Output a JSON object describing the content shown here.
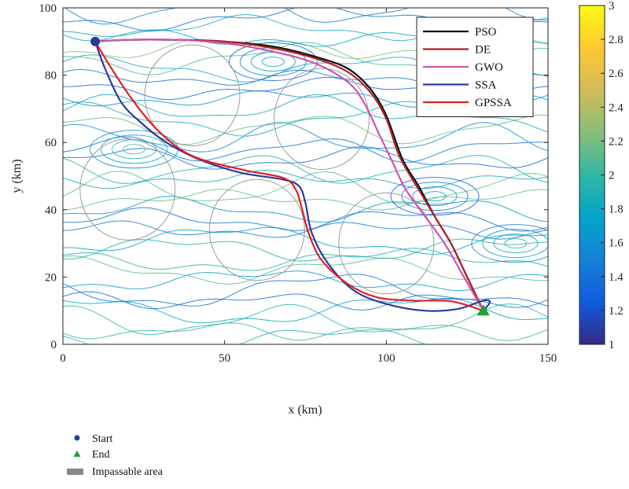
{
  "chart_data": {
    "type": "line",
    "title": "",
    "xlabel": "x (km)",
    "ylabel": "y (km)",
    "xlim": [
      0,
      150
    ],
    "ylim": [
      0,
      100
    ],
    "x_ticks": [
      "0",
      "50",
      "100",
      "150"
    ],
    "y_ticks": [
      "0",
      "20",
      "40",
      "60",
      "80",
      "100"
    ],
    "grid": false,
    "legend_position": "top-right",
    "series": [
      {
        "name": "PSO",
        "color": "#111111",
        "x": [
          10,
          20,
          35,
          50,
          65,
          78,
          88,
          95,
          100,
          105,
          110,
          115,
          120,
          125,
          130
        ],
        "y": [
          90,
          90.5,
          90.5,
          90,
          88.5,
          85.5,
          82,
          76,
          68,
          55,
          47,
          38,
          30,
          20,
          10
        ]
      },
      {
        "name": "DE",
        "color": "#b22222",
        "x": [
          10,
          20,
          35,
          50,
          65,
          78,
          88,
          95,
          100,
          104,
          110,
          115,
          120,
          125,
          130
        ],
        "y": [
          90,
          90.5,
          90.5,
          90,
          88,
          85,
          81,
          75,
          67,
          56,
          46,
          38,
          30,
          20,
          10
        ]
      },
      {
        "name": "GWO",
        "color": "#cc55b0",
        "x": [
          10,
          20,
          35,
          50,
          65,
          78,
          88,
          93,
          98,
          102,
          106,
          112,
          118,
          124,
          130
        ],
        "y": [
          90,
          90.5,
          90.5,
          89.5,
          87,
          83.5,
          78,
          72,
          62,
          54,
          46,
          38,
          30,
          20,
          10
        ]
      },
      {
        "name": "SSA",
        "color": "#2e3a9c",
        "x": [
          10,
          13,
          18,
          24,
          32,
          42,
          55,
          68,
          73,
          75,
          77,
          82,
          90,
          100,
          112,
          122,
          130,
          132,
          130
        ],
        "y": [
          90,
          82,
          72,
          66,
          60,
          55,
          51,
          49,
          47,
          42,
          33,
          24,
          16,
          12,
          10,
          10.5,
          13,
          12.5,
          10
        ]
      },
      {
        "name": "GPSSA",
        "color": "#e02020",
        "x": [
          10,
          15,
          22,
          30,
          40,
          55,
          68,
          72,
          74,
          76,
          80,
          88,
          97,
          108,
          120,
          130
        ],
        "y": [
          90,
          82,
          72,
          63,
          56,
          52,
          49.5,
          46,
          40,
          33,
          25,
          18,
          14,
          13,
          12.8,
          10
        ]
      }
    ],
    "start": {
      "label": "Start",
      "x": 10,
      "y": 90,
      "color": "#1f3f9a"
    },
    "end": {
      "label": "End",
      "x": 130,
      "y": 10,
      "color": "#1fa032"
    },
    "impassable_area_label": "Impassable area",
    "impassable_color": "#888888",
    "impassable_areas": [
      {
        "cx": 40,
        "cy": 74,
        "r": 15
      },
      {
        "cx": 80,
        "cy": 67,
        "r": 15
      },
      {
        "cx": 20,
        "cy": 46,
        "r": 15
      },
      {
        "cx": 60,
        "cy": 34,
        "r": 15
      },
      {
        "cx": 100,
        "cy": 30,
        "r": 15
      }
    ],
    "colorbar": {
      "min": 1,
      "max": 3,
      "ticks": [
        "1",
        "1.2",
        "1.4",
        "1.6",
        "1.8",
        "2",
        "2.2",
        "2.4",
        "2.6",
        "2.8",
        "3"
      ],
      "colors": [
        "#352a87",
        "#0f5cdd",
        "#1481d6",
        "#06a4ca",
        "#2eb7a4",
        "#87bf77",
        "#d1bb59",
        "#fec832",
        "#f9fb0e"
      ]
    }
  }
}
